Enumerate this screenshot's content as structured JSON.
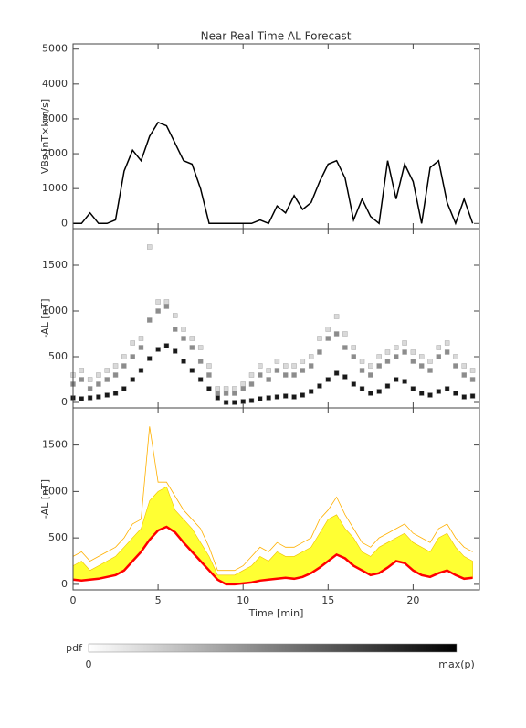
{
  "chart_data": [
    {
      "type": "line",
      "title": "Near Real Time AL Forecast",
      "ylabel": "VBs [nT×km/s]",
      "x": [
        0,
        0.5,
        1,
        1.5,
        2,
        2.5,
        3,
        3.5,
        4,
        4.5,
        5,
        5.5,
        6,
        6.5,
        7,
        7.5,
        8,
        8.5,
        9,
        9.5,
        10,
        10.5,
        11,
        11.5,
        12,
        12.5,
        13,
        13.5,
        14,
        14.5,
        15,
        15.5,
        16,
        16.5,
        17,
        17.5,
        18,
        18.5,
        19,
        19.5,
        20,
        20.5,
        21,
        21.5,
        22,
        22.5,
        23,
        23.5
      ],
      "series": [
        {
          "color": "#000000",
          "values": [
            0,
            0,
            300,
            0,
            0,
            100,
            1500,
            2100,
            1800,
            2500,
            2900,
            2800,
            2300,
            1800,
            1700,
            1000,
            0,
            0,
            0,
            0,
            0,
            0,
            100,
            0,
            500,
            300,
            800,
            400,
            600,
            1200,
            1700,
            1800,
            1300,
            100,
            700,
            200,
            0,
            1800,
            700,
            1700,
            1200,
            0,
            1600,
            1800,
            600,
            0,
            700,
            0
          ]
        }
      ],
      "xlim": [
        0,
        23.9
      ],
      "xticks": [
        0,
        5,
        10,
        15,
        20
      ],
      "ylim": [
        -150,
        5150
      ],
      "yticks": [
        0,
        1000,
        2000,
        3000,
        4000,
        5000
      ]
    },
    {
      "type": "density",
      "ylabel": "-AL [nT]",
      "x": [
        0,
        0.5,
        1,
        1.5,
        2,
        2.5,
        3,
        3.5,
        4,
        4.5,
        5,
        5.5,
        6,
        6.5,
        7,
        7.5,
        8,
        8.5,
        9,
        9.5,
        10,
        10.5,
        11,
        11.5,
        12,
        12.5,
        13,
        13.5,
        14,
        14.5,
        15,
        15.5,
        16,
        16.5,
        17,
        17.5,
        18,
        18.5,
        19,
        19.5,
        20,
        20.5,
        21,
        21.5,
        22,
        22.5,
        23,
        23.5
      ],
      "series": [
        {
          "p": 0.9,
          "values": [
            50,
            40,
            50,
            60,
            80,
            100,
            150,
            250,
            350,
            480,
            580,
            620,
            560,
            450,
            350,
            250,
            150,
            50,
            0,
            0,
            10,
            20,
            40,
            50,
            60,
            70,
            60,
            80,
            120,
            180,
            250,
            320,
            280,
            200,
            150,
            100,
            120,
            180,
            250,
            230,
            150,
            100,
            80,
            120,
            150,
            100,
            60,
            70
          ]
        },
        {
          "p": 0.45,
          "values": [
            200,
            250,
            150,
            200,
            250,
            300,
            400,
            500,
            600,
            900,
            1000,
            1050,
            800,
            700,
            600,
            450,
            300,
            100,
            100,
            100,
            150,
            200,
            300,
            250,
            350,
            300,
            300,
            350,
            400,
            550,
            700,
            750,
            600,
            500,
            350,
            300,
            400,
            450,
            500,
            550,
            450,
            400,
            350,
            500,
            550,
            400,
            300,
            250
          ]
        },
        {
          "p": 0.15,
          "values": [
            300,
            350,
            250,
            300,
            350,
            400,
            500,
            650,
            700,
            1700,
            1100,
            1100,
            950,
            800,
            700,
            600,
            400,
            150,
            150,
            150,
            200,
            300,
            400,
            350,
            450,
            400,
            400,
            450,
            500,
            700,
            800,
            940,
            750,
            600,
            450,
            400,
            500,
            550,
            600,
            650,
            550,
            500,
            450,
            600,
            650,
            500,
            400,
            350
          ]
        }
      ],
      "xlim": [
        0,
        23.9
      ],
      "xticks": [
        0,
        5,
        10,
        15,
        20
      ],
      "ylim": [
        -60,
        1900
      ],
      "yticks": [
        0,
        500,
        1000,
        1500
      ]
    },
    {
      "type": "band",
      "ylabel": "-AL [nT]",
      "xlabel": "Time [min]",
      "x": [
        0,
        0.5,
        1,
        1.5,
        2,
        2.5,
        3,
        3.5,
        4,
        4.5,
        5,
        5.5,
        6,
        6.5,
        7,
        7.5,
        8,
        8.5,
        9,
        9.5,
        10,
        10.5,
        11,
        11.5,
        12,
        12.5,
        13,
        13.5,
        14,
        14.5,
        15,
        15.5,
        16,
        16.5,
        17,
        17.5,
        18,
        18.5,
        19,
        19.5,
        20,
        20.5,
        21,
        21.5,
        22,
        22.5,
        23,
        23.5
      ],
      "median": {
        "color": "#ff0000",
        "values": [
          50,
          40,
          50,
          60,
          80,
          100,
          150,
          250,
          350,
          480,
          580,
          620,
          560,
          450,
          350,
          250,
          150,
          50,
          0,
          0,
          10,
          20,
          40,
          50,
          60,
          70,
          60,
          80,
          120,
          180,
          250,
          320,
          280,
          200,
          150,
          100,
          120,
          180,
          250,
          230,
          150,
          100,
          80,
          120,
          150,
          100,
          60,
          70
        ]
      },
      "upper": {
        "color": "#ffff33",
        "values": [
          200,
          250,
          150,
          200,
          250,
          300,
          400,
          500,
          600,
          900,
          1000,
          1050,
          800,
          700,
          600,
          450,
          300,
          100,
          100,
          100,
          150,
          200,
          300,
          250,
          350,
          300,
          300,
          350,
          400,
          550,
          700,
          750,
          600,
          500,
          350,
          300,
          400,
          450,
          500,
          550,
          450,
          400,
          350,
          500,
          550,
          400,
          300,
          250
        ]
      },
      "max": {
        "color": "#ffb000",
        "values": [
          300,
          350,
          250,
          300,
          350,
          400,
          500,
          650,
          700,
          1700,
          1100,
          1100,
          950,
          800,
          700,
          600,
          400,
          150,
          150,
          150,
          200,
          300,
          400,
          350,
          450,
          400,
          400,
          450,
          500,
          700,
          800,
          940,
          750,
          600,
          450,
          400,
          500,
          550,
          600,
          650,
          550,
          500,
          450,
          600,
          650,
          500,
          400,
          350
        ]
      },
      "xlim": [
        0,
        23.9
      ],
      "xticks": [
        0,
        5,
        10,
        15,
        20
      ],
      "ylim": [
        -60,
        1900
      ],
      "yticks": [
        0,
        500,
        1000,
        1500
      ]
    },
    {
      "type": "colorbar",
      "label": "pdf",
      "min_label": "0",
      "max_label": "max(p)",
      "colors": [
        "#ffffff",
        "#000000"
      ]
    }
  ]
}
